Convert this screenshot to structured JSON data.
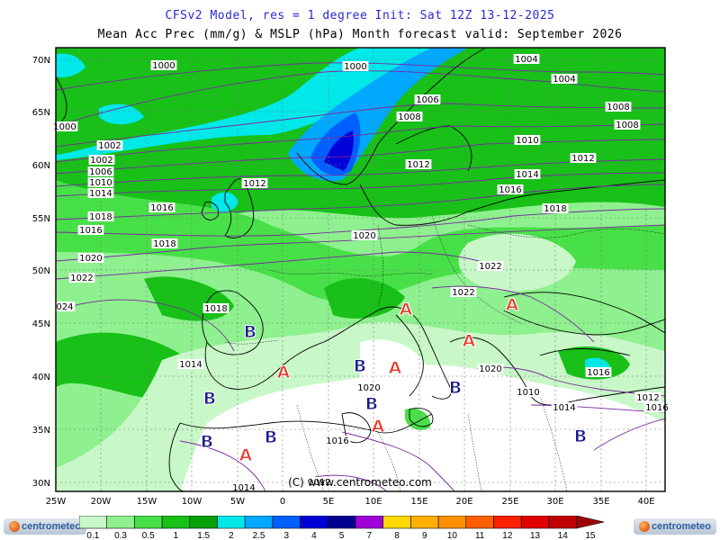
{
  "titles": {
    "line1": "CFSv2 Model, res = 1 degree    Init: Sat 12Z 13-12-2025",
    "line2": "Mean Acc Prec (mm/g) & MSLP (hPa)    Month forecast valid: September 2026"
  },
  "axes": {
    "lat_labels": [
      "70N",
      "65N",
      "60N",
      "55N",
      "50N",
      "45N",
      "40N",
      "35N",
      "30N"
    ],
    "lon_labels": [
      "25W",
      "20W",
      "15W",
      "10W",
      "5W",
      "0",
      "5E",
      "10E",
      "15E",
      "20E",
      "25E",
      "30E",
      "35E",
      "40E"
    ]
  },
  "watermark": "(C) www.centrometeo.com",
  "isobar_labels": [
    "1000",
    "1000",
    "1000",
    "1002",
    "1002",
    "1004",
    "1004",
    "1006",
    "1006",
    "1008",
    "1008",
    "1008",
    "1010",
    "1010",
    "1012",
    "1012",
    "1012",
    "1014",
    "1014",
    "1016",
    "1016",
    "1016",
    "1018",
    "1018",
    "1018",
    "1018",
    "1020",
    "1020",
    "1020",
    "1020",
    "1022",
    "1022",
    "1022",
    "024",
    "1016",
    "1014",
    "1014",
    "1012",
    "1016",
    "1016",
    "1014",
    "1012",
    "1010"
  ],
  "pressure_centers": [
    {
      "type": "A",
      "color": "#e8392a"
    },
    {
      "type": "A",
      "color": "#e8392a"
    },
    {
      "type": "A",
      "color": "#e8392a"
    },
    {
      "type": "A",
      "color": "#e8392a"
    },
    {
      "type": "A",
      "color": "#e8392a"
    },
    {
      "type": "A",
      "color": "#e8392a"
    },
    {
      "type": "A",
      "color": "#e8392a"
    },
    {
      "type": "B",
      "color": "#1a1a8c"
    },
    {
      "type": "B",
      "color": "#1a1a8c"
    },
    {
      "type": "B",
      "color": "#1a1a8c"
    },
    {
      "type": "B",
      "color": "#1a1a8c"
    },
    {
      "type": "B",
      "color": "#1a1a8c"
    },
    {
      "type": "B",
      "color": "#1a1a8c"
    },
    {
      "type": "B",
      "color": "#1a1a8c"
    },
    {
      "type": "B",
      "color": "#1a1a8c"
    }
  ],
  "colorbar": {
    "labels": [
      "0.1",
      "0.3",
      "0.5",
      "1",
      "1.5",
      "2",
      "2.5",
      "3",
      "4",
      "5",
      "7",
      "8",
      "9",
      "10",
      "11",
      "12",
      "13",
      "14",
      "15"
    ],
    "colors": [
      "#ffffff",
      "#c8f7c8",
      "#8ef08e",
      "#48e048",
      "#18c018",
      "#08a008",
      "#00e8e8",
      "#00a8ff",
      "#0060ff",
      "#0000d8",
      "#000090",
      "#a000d8",
      "#ffd800",
      "#ffb000",
      "#ff9000",
      "#ff6000",
      "#ff2000",
      "#e00000",
      "#c00000",
      "#a00000"
    ]
  },
  "logos": {
    "left": "centrometeo",
    "right": "centrometeo"
  }
}
